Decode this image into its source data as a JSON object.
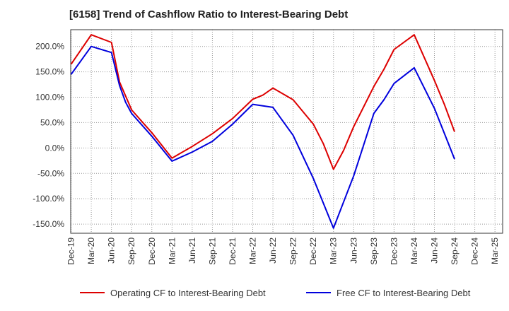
{
  "chart_data": {
    "type": "line",
    "title": "[6158]  Trend of Cashflow Ratio to Interest-Bearing Debt",
    "x_tick_labels": [
      "Dec-19",
      "Mar-20",
      "Jun-20",
      "Sep-20",
      "Dec-20",
      "Mar-21",
      "Jun-21",
      "Sep-21",
      "Dec-21",
      "Mar-22",
      "Jun-22",
      "Sep-22",
      "Dec-22",
      "Mar-23",
      "Jun-23",
      "Sep-23",
      "Dec-23",
      "Mar-24",
      "Jun-24",
      "Sep-24",
      "Dec-24",
      "Mar-25"
    ],
    "y_tick_labels": [
      "200.0%",
      "150.0%",
      "100.0%",
      "50.0%",
      "0.0%",
      "-50.0%",
      "-100.0%",
      "-150.0%"
    ],
    "y_ticks": [
      200,
      150,
      100,
      50,
      0,
      -50,
      -100,
      -150
    ],
    "ylim": [
      -168,
      233
    ],
    "grid": true,
    "legend_position": "bottom",
    "series": [
      {
        "name": "Operating CF to Interest-Bearing Debt",
        "color": "#dd0000",
        "points": [
          [
            0,
            165
          ],
          [
            1,
            223
          ],
          [
            2,
            208
          ],
          [
            2.4,
            130
          ],
          [
            3,
            75
          ],
          [
            4,
            30
          ],
          [
            5,
            -20
          ],
          [
            6,
            3
          ],
          [
            7,
            28
          ],
          [
            8,
            58
          ],
          [
            9,
            96
          ],
          [
            9.5,
            104
          ],
          [
            10,
            118
          ],
          [
            11,
            95
          ],
          [
            12,
            47
          ],
          [
            12.5,
            8
          ],
          [
            13,
            -42
          ],
          [
            13.5,
            -5
          ],
          [
            14,
            42
          ],
          [
            15,
            121
          ],
          [
            15.5,
            155
          ],
          [
            16,
            194
          ],
          [
            17,
            223
          ],
          [
            18,
            133
          ],
          [
            18.5,
            85
          ],
          [
            19,
            32
          ]
        ]
      },
      {
        "name": "Free CF to Interest-Bearing Debt",
        "color": "#0000dd",
        "points": [
          [
            0,
            145
          ],
          [
            1,
            200
          ],
          [
            2,
            188
          ],
          [
            2.4,
            123
          ],
          [
            2.7,
            90
          ],
          [
            3,
            68
          ],
          [
            4,
            23
          ],
          [
            5,
            -26
          ],
          [
            6,
            -8
          ],
          [
            7,
            13
          ],
          [
            8,
            47
          ],
          [
            9,
            86
          ],
          [
            10,
            80
          ],
          [
            11,
            25
          ],
          [
            12,
            -60
          ],
          [
            13,
            -158
          ],
          [
            14,
            -55
          ],
          [
            15,
            68
          ],
          [
            15.5,
            95
          ],
          [
            16,
            127
          ],
          [
            17,
            158
          ],
          [
            18,
            78
          ],
          [
            18.5,
            28
          ],
          [
            19,
            -22
          ]
        ]
      }
    ]
  }
}
